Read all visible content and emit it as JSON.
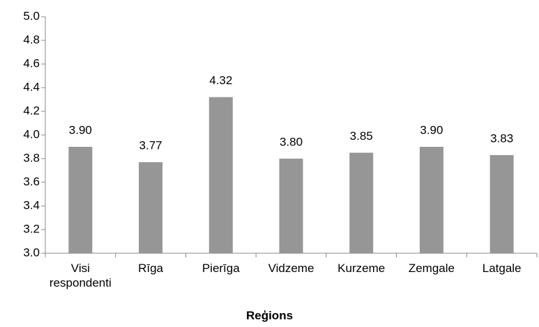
{
  "chart_data": {
    "type": "bar",
    "x_label": "Reģions",
    "categories": [
      "Visi respondenti",
      "Rīga",
      "Pierīga",
      "Vidzeme",
      "Kurzeme",
      "Zemgale",
      "Latgale"
    ],
    "values": [
      3.9,
      3.77,
      4.32,
      3.8,
      3.85,
      3.9,
      3.83
    ],
    "value_labels": [
      "3.90",
      "3.77",
      "4.32",
      "3.80",
      "3.85",
      "3.90",
      "3.83"
    ],
    "color": "#969696",
    "ylim": [
      3.0,
      5.0
    ],
    "yticks": [
      {
        "value": 3.0,
        "label": "3.0"
      },
      3.2,
      3.4,
      3.6,
      3.8,
      {
        "value": 4.0,
        "label": "4.0"
      },
      4.2,
      4.4,
      4.6,
      4.8,
      {
        "value": 5.0,
        "label": "5.0"
      }
    ],
    "grid": false
  }
}
